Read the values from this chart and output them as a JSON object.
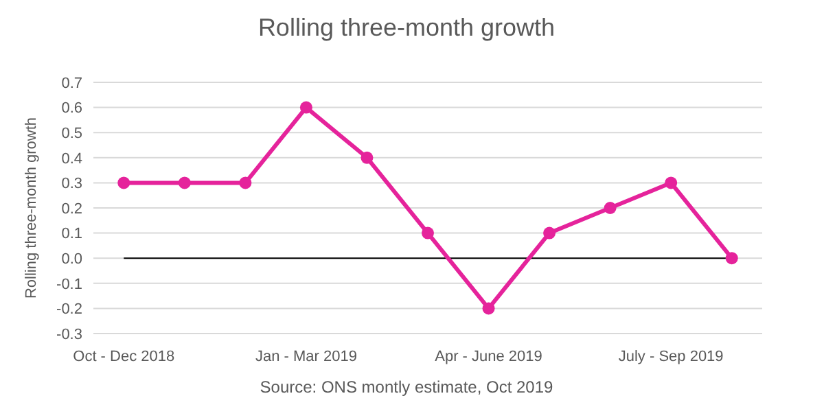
{
  "chart_data": {
    "type": "line",
    "title": "Rolling three-month growth",
    "ylabel": "Rolling three-month growth",
    "categories": [
      "Oct - Dec 2018",
      null,
      null,
      "Jan - Mar 2019",
      null,
      null,
      "Apr - June 2019",
      null,
      null,
      "July - Sep 2019",
      null
    ],
    "series": [
      {
        "color": "#e5239b",
        "values": [
          0.3,
          0.3,
          0.3,
          0.6,
          0.4,
          0.1,
          -0.2,
          0.1,
          0.2,
          0.3,
          0.0
        ]
      }
    ],
    "ylim": [
      -0.3,
      0.7
    ],
    "yticks": [
      -0.3,
      -0.2,
      -0.1,
      {
        "value": 0,
        "label": "0.0"
      },
      0.1,
      0.2,
      0.3,
      0.4,
      0.5,
      0.6,
      0.7
    ],
    "grid": "y",
    "marker": "circle",
    "ref_lines": [
      {
        "axis": "y",
        "value": 0,
        "color": "#000000"
      }
    ],
    "annotations": [
      "Source: ONS montly estimate, Oct 2019"
    ]
  }
}
